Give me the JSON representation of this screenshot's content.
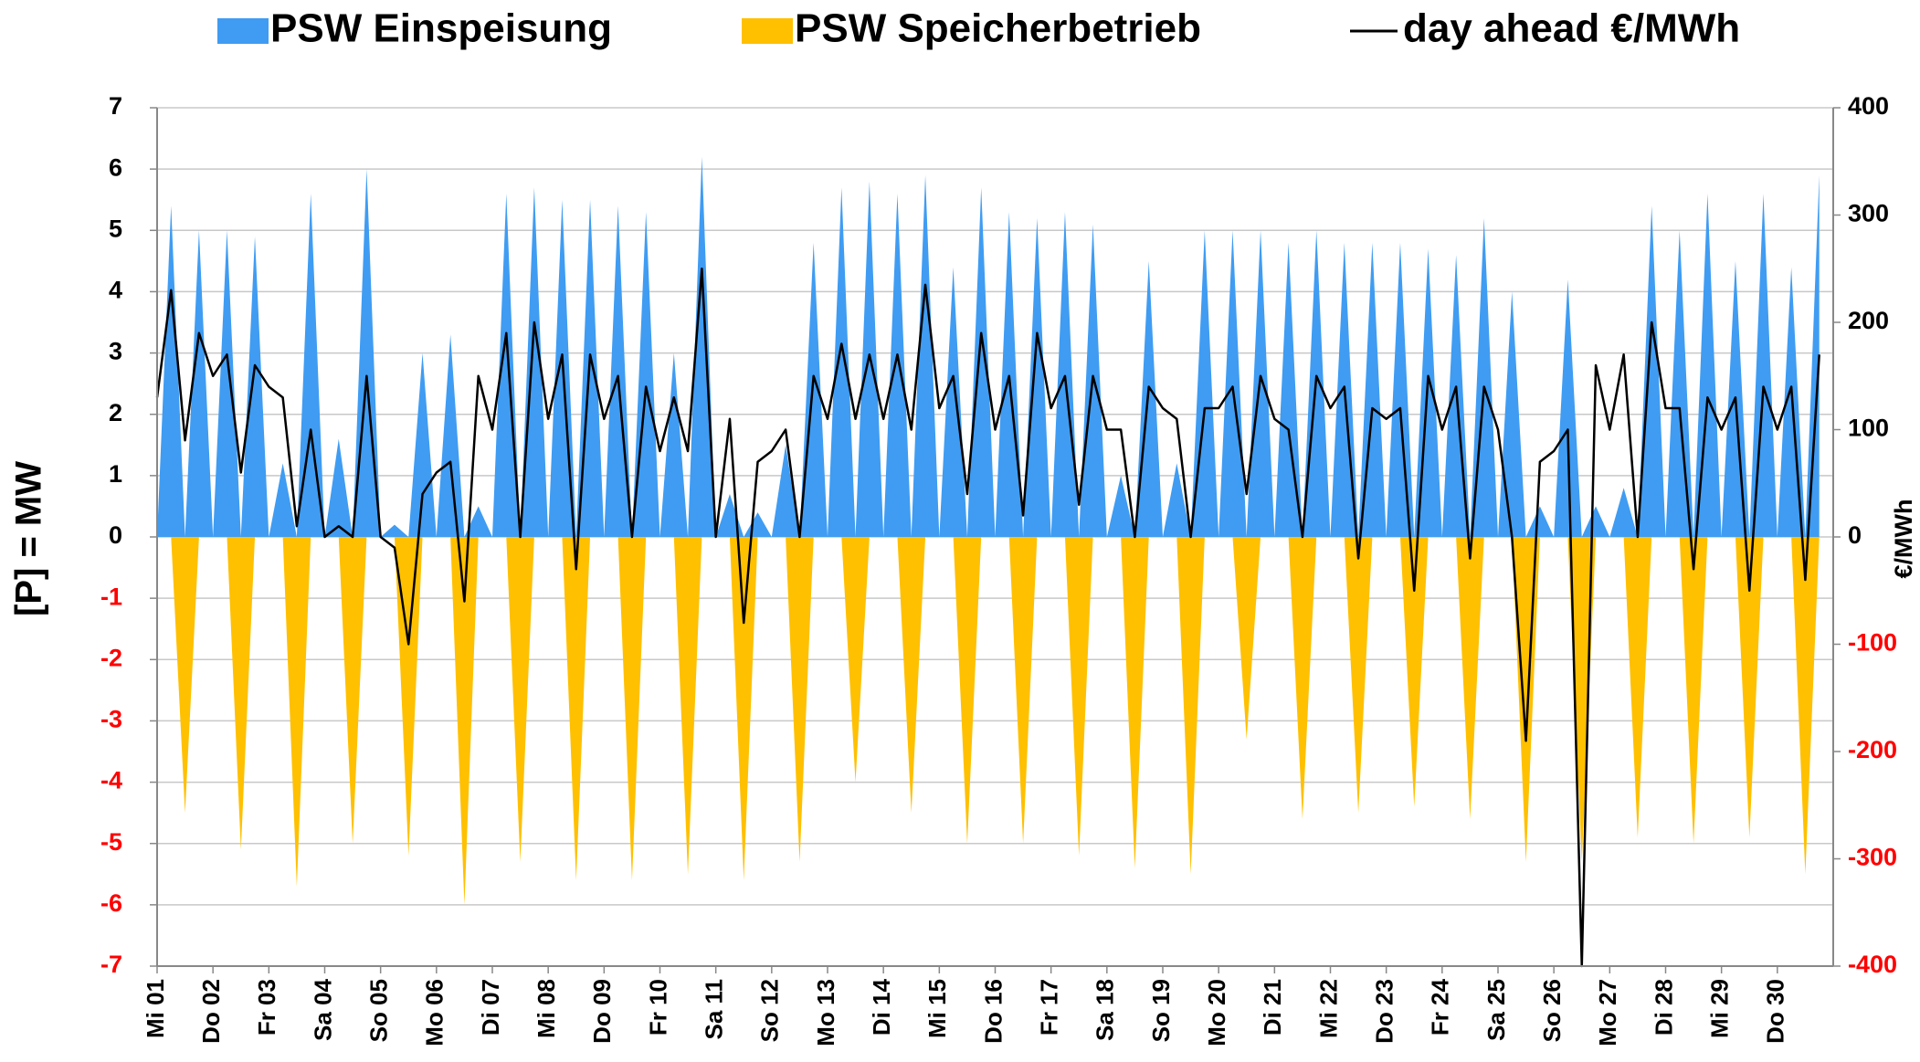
{
  "chart_data": {
    "type": "area_line",
    "legend_position": "top",
    "grid": true,
    "negative_tick_color": "#ff0000",
    "ylabel": "[P]  = MW",
    "y2label": "€/MWh",
    "xlim": [
      0,
      30
    ],
    "xticks": [
      {
        "value": 0,
        "label": "Mi 01"
      },
      {
        "value": 1,
        "label": "Do 02"
      },
      {
        "value": 2,
        "label": "Fr 03"
      },
      {
        "value": 3,
        "label": "Sa 04"
      },
      {
        "value": 4,
        "label": "So 05"
      },
      {
        "value": 5,
        "label": "Mo 06"
      },
      {
        "value": 6,
        "label": "Di 07"
      },
      {
        "value": 7,
        "label": "Mi 08"
      },
      {
        "value": 8,
        "label": "Do 09"
      },
      {
        "value": 9,
        "label": "Fr 10"
      },
      {
        "value": 10,
        "label": "Sa 11"
      },
      {
        "value": 11,
        "label": "So 12"
      },
      {
        "value": 12,
        "label": "Mo 13"
      },
      {
        "value": 13,
        "label": "Di 14"
      },
      {
        "value": 14,
        "label": "Mi 15"
      },
      {
        "value": 15,
        "label": "Do 16"
      },
      {
        "value": 16,
        "label": "Fr 17"
      },
      {
        "value": 17,
        "label": "Sa 18"
      },
      {
        "value": 18,
        "label": "So 19"
      },
      {
        "value": 19,
        "label": "Mo 20"
      },
      {
        "value": 20,
        "label": "Di 21"
      },
      {
        "value": 21,
        "label": "Mi 22"
      },
      {
        "value": 22,
        "label": "Do 23"
      },
      {
        "value": 23,
        "label": "Fr 24"
      },
      {
        "value": 24,
        "label": "Sa 25"
      },
      {
        "value": 25,
        "label": "So 26"
      },
      {
        "value": 26,
        "label": "Mo 27"
      },
      {
        "value": 27,
        "label": "Di 28"
      },
      {
        "value": 28,
        "label": "Mi 29"
      },
      {
        "value": 29,
        "label": "Do 30"
      }
    ],
    "ylim": [
      -7,
      7
    ],
    "yticks": [
      -7,
      -6,
      -5,
      -4,
      -3,
      -2,
      -1,
      0,
      1,
      2,
      3,
      4,
      5,
      6,
      7
    ],
    "y2lim": [
      -400,
      400
    ],
    "y2ticks": [
      -400,
      -300,
      -200,
      -100,
      0,
      100,
      200,
      300,
      400
    ],
    "x": [
      0,
      0.25,
      0.5,
      0.75,
      1,
      1.25,
      1.5,
      1.75,
      2,
      2.25,
      2.5,
      2.75,
      3,
      3.25,
      3.5,
      3.75,
      4,
      4.25,
      4.5,
      4.75,
      5,
      5.25,
      5.5,
      5.75,
      6,
      6.25,
      6.5,
      6.75,
      7,
      7.25,
      7.5,
      7.75,
      8,
      8.25,
      8.5,
      8.75,
      9,
      9.25,
      9.5,
      9.75,
      10,
      10.25,
      10.5,
      10.75,
      11,
      11.25,
      11.5,
      11.75,
      12,
      12.25,
      12.5,
      12.75,
      13,
      13.25,
      13.5,
      13.75,
      14,
      14.25,
      14.5,
      14.75,
      15,
      15.25,
      15.5,
      15.75,
      16,
      16.25,
      16.5,
      16.75,
      17,
      17.25,
      17.5,
      17.75,
      18,
      18.25,
      18.5,
      18.75,
      19,
      19.25,
      19.5,
      19.75,
      20,
      20.25,
      20.5,
      20.75,
      21,
      21.25,
      21.5,
      21.75,
      22,
      22.25,
      22.5,
      22.75,
      23,
      23.25,
      23.5,
      23.75,
      24,
      24.25,
      24.5,
      24.75,
      25,
      25.25,
      25.5,
      25.75,
      26,
      26.25,
      26.5,
      26.75,
      27,
      27.25,
      27.5,
      27.75,
      28,
      28.25,
      28.5,
      28.75,
      29,
      29.25,
      29.5,
      29.75
    ],
    "series": [
      {
        "name": "PSW Einspeisung",
        "kind": "area",
        "color": "#3f9cf2",
        "values": [
          0,
          5.4,
          0,
          5.0,
          0,
          5.0,
          0,
          4.9,
          0,
          1.2,
          0,
          5.6,
          0,
          1.6,
          0,
          6.0,
          0,
          0.2,
          0,
          3.0,
          0,
          3.3,
          0,
          0.5,
          0,
          5.6,
          0,
          5.7,
          0,
          5.5,
          0,
          5.5,
          0,
          5.4,
          0,
          5.3,
          0,
          3.0,
          0,
          6.2,
          0,
          0.7,
          0,
          0.4,
          0,
          1.5,
          0,
          4.8,
          0,
          5.7,
          0,
          5.8,
          0,
          5.6,
          0,
          5.9,
          0,
          4.4,
          0,
          5.7,
          0,
          5.3,
          0,
          5.2,
          0,
          5.3,
          0,
          5.1,
          0,
          1.0,
          0,
          4.5,
          0,
          1.2,
          0,
          5.0,
          0,
          5.0,
          0,
          5.0,
          0,
          4.8,
          0,
          5.0,
          0,
          4.8,
          0,
          4.8,
          0,
          4.8,
          0,
          4.7,
          0,
          4.6,
          0,
          5.2,
          0,
          4.0,
          0,
          0.5,
          0,
          4.2,
          0,
          0.5,
          0,
          0.8,
          0,
          5.4,
          0,
          5.0,
          0,
          5.6,
          0,
          4.5,
          0,
          5.6,
          0,
          4.4,
          0,
          5.9
        ]
      },
      {
        "name": "PSW Speicherbetrieb",
        "kind": "area",
        "color": "#ffc000",
        "values": [
          0,
          0,
          -4.5,
          0,
          0,
          0,
          -5.1,
          0,
          0,
          0,
          -5.7,
          0,
          0,
          0,
          -5.0,
          0,
          0,
          0,
          -5.2,
          0,
          0,
          0,
          -6.0,
          0,
          0,
          0,
          -5.3,
          0,
          0,
          0,
          -5.6,
          0,
          0,
          0,
          -5.6,
          0,
          0,
          0,
          -5.5,
          0,
          0,
          0,
          -5.6,
          0,
          0,
          0,
          -5.3,
          0,
          0,
          0,
          -4.0,
          0,
          0,
          0,
          -4.5,
          0,
          0,
          0,
          -5.0,
          0,
          0,
          0,
          -5.0,
          0,
          0,
          0,
          -5.2,
          0,
          0,
          0,
          -5.4,
          0,
          0,
          0,
          -5.5,
          0,
          0,
          0,
          -3.3,
          0,
          0,
          0,
          -4.6,
          0,
          0,
          0,
          -4.5,
          0,
          0,
          0,
          -4.4,
          0,
          0,
          0,
          -4.6,
          0,
          0,
          0,
          -5.3,
          0,
          0,
          0,
          -5.3,
          0,
          0,
          0,
          -4.9,
          0,
          0,
          0,
          -5.0,
          0,
          0,
          0,
          -4.9,
          0,
          0,
          0,
          -5.5,
          0
        ]
      },
      {
        "name": "day ahead €/MWh",
        "kind": "line",
        "axis": "y2",
        "color": "#000000",
        "values": [
          130,
          230,
          90,
          190,
          150,
          170,
          60,
          160,
          140,
          130,
          10,
          100,
          0,
          10,
          0,
          150,
          0,
          -10,
          -100,
          40,
          60,
          70,
          -60,
          150,
          100,
          190,
          0,
          200,
          110,
          170,
          -30,
          170,
          110,
          150,
          0,
          140,
          80,
          130,
          80,
          250,
          0,
          110,
          -80,
          70,
          80,
          100,
          0,
          150,
          110,
          180,
          110,
          170,
          110,
          170,
          100,
          235,
          120,
          150,
          40,
          190,
          100,
          150,
          20,
          190,
          120,
          150,
          30,
          150,
          100,
          100,
          0,
          140,
          120,
          110,
          0,
          120,
          120,
          140,
          40,
          150,
          110,
          100,
          0,
          150,
          120,
          140,
          -20,
          120,
          110,
          120,
          -50,
          150,
          100,
          140,
          -20,
          140,
          100,
          0,
          -190,
          70,
          80,
          100,
          -400,
          160,
          100,
          170,
          0,
          200,
          120,
          120,
          -30,
          130,
          100,
          130,
          -50,
          140,
          100,
          140,
          -40,
          170
        ]
      }
    ]
  }
}
